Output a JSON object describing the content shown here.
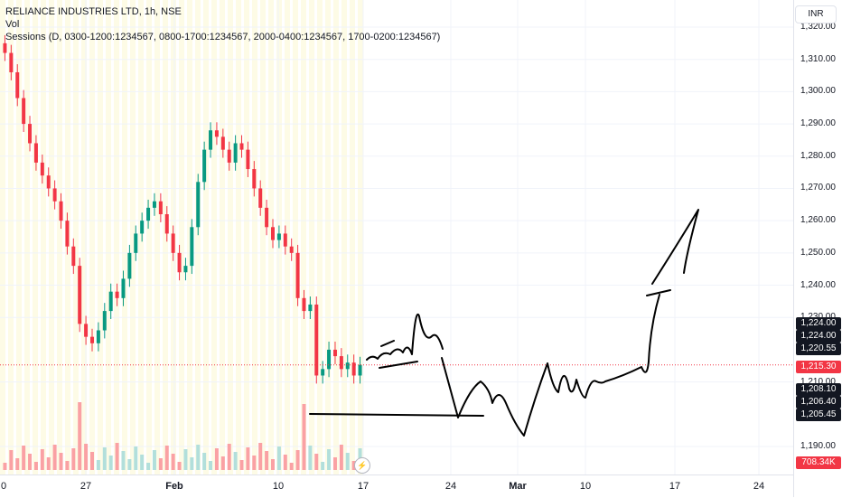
{
  "legend": {
    "title": "RELIANCE INDUSTRIES LTD, 1h, NSE",
    "vol": "Vol",
    "sessions": "Sessions (D, 0300-1200:1234567, 0800-1700:1234567, 2000-0400:1234567, 1700-0200:1234567)"
  },
  "currency": "INR",
  "colors": {
    "up": "#089981",
    "down": "#f23645",
    "session_bg": "#fdfbe6",
    "drawing": "#000000",
    "vol_up": "#b2dfdb",
    "vol_down": "#faa1a4"
  },
  "price_axis": {
    "ticks": [
      "1,320.00",
      "1,310.00",
      "1,300.00",
      "1,290.00",
      "1,280.00",
      "1,270.00",
      "1,260.00",
      "1,250.00",
      "1,240.00",
      "1,230.00",
      "1,210.00",
      "1,190.00"
    ],
    "tags": [
      {
        "text": "1,224.00",
        "color": "dark"
      },
      {
        "text": "1,224.00",
        "color": "dark"
      },
      {
        "text": "1,220.55",
        "color": "dark"
      },
      {
        "text": "1,215.30",
        "color": "red"
      },
      {
        "text": "1,208.10",
        "color": "dark"
      },
      {
        "text": "1,206.40",
        "color": "dark"
      },
      {
        "text": "1,205.45",
        "color": "dark"
      },
      {
        "text": "708.34K",
        "color": "red"
      }
    ]
  },
  "time_axis": {
    "ticks": [
      "0",
      "27",
      "Feb",
      "10",
      "17",
      "24",
      "Mar",
      "10",
      "17",
      "24"
    ]
  },
  "chart_data": {
    "type": "candlestick",
    "title": "RELIANCE INDUSTRIES LTD, 1h, NSE",
    "ylim": [
      1185,
      1325
    ],
    "last_price": 1215.3,
    "close_series_approx": [
      1312,
      1306,
      1298,
      1290,
      1284,
      1278,
      1274,
      1270,
      1266,
      1260,
      1252,
      1246,
      1228,
      1224,
      1222,
      1226,
      1232,
      1238,
      1236,
      1242,
      1250,
      1256,
      1260,
      1264,
      1266,
      1262,
      1256,
      1250,
      1244,
      1246,
      1258,
      1272,
      1282,
      1288,
      1286,
      1282,
      1278,
      1284,
      1282,
      1276,
      1270,
      1264,
      1258,
      1254,
      1256,
      1252,
      1250,
      1236,
      1232,
      1234,
      1212,
      1214,
      1220,
      1218,
      1214,
      1216,
      1212,
      1215.3
    ],
    "volume_last": "708.34K"
  }
}
